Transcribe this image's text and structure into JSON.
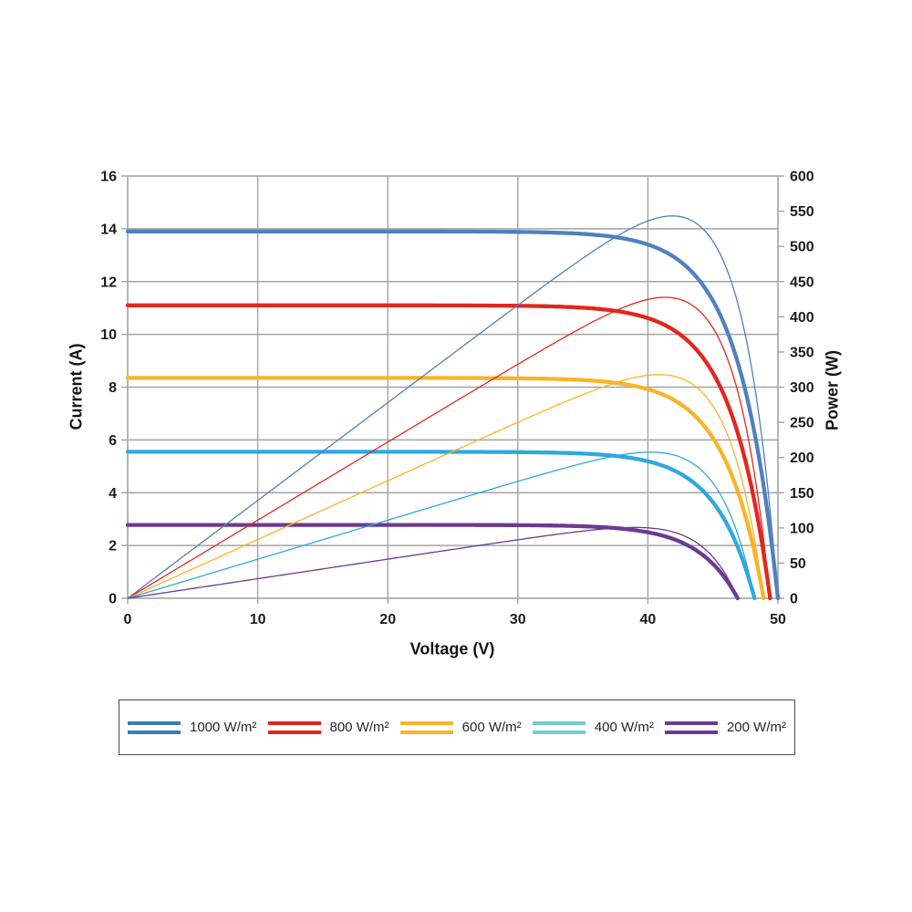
{
  "chart_data": {
    "type": "line",
    "title": "",
    "description": "Solar PV module I-V curves (thick lines, left axis) and P-V curves (thin lines, right axis) at five irradiance levels",
    "x_axis": {
      "label": "Voltage (V)",
      "min": 0,
      "max": 50,
      "ticks": [
        0,
        10,
        20,
        30,
        40,
        50
      ]
    },
    "y_axis_left": {
      "label": "Current (A)",
      "min": 0,
      "max": 16,
      "ticks": [
        0,
        2,
        4,
        6,
        8,
        10,
        12,
        14,
        16
      ]
    },
    "y_axis_right": {
      "label": "Power (W)",
      "min": 0,
      "max": 600,
      "ticks": [
        0,
        50,
        100,
        150,
        200,
        250,
        300,
        350,
        400,
        450,
        500,
        550,
        600
      ]
    },
    "grid": {
      "on": true,
      "color": "#A3A3A3",
      "horizontal_every_amps": 2,
      "vertical_every_volts": 10
    },
    "legend": {
      "position": "bottom",
      "border_color": "#4a4a4a"
    },
    "series": [
      {
        "label": "1000 W/m²",
        "color": "#4F81BD",
        "legend_color": "#3A7CB8",
        "isc_a": 13.9,
        "voc_v": 50.0,
        "vmp_v": 41.5,
        "pmax_w": 550,
        "knee_a": 3.0,
        "iv_points": [
          [
            0,
            13.9
          ],
          [
            10,
            13.9
          ],
          [
            20,
            13.9
          ],
          [
            30,
            13.89
          ],
          [
            40,
            13.4
          ],
          [
            44,
            12.0
          ],
          [
            46,
            10.2
          ],
          [
            48,
            6.8
          ],
          [
            50,
            0
          ]
        ],
        "pv_points": [
          [
            0,
            0
          ],
          [
            10,
            139
          ],
          [
            20,
            278
          ],
          [
            30,
            417
          ],
          [
            41.5,
            550
          ],
          [
            46,
            470
          ],
          [
            50,
            0
          ]
        ]
      },
      {
        "label": "800 W/m²",
        "color": "#E3261E",
        "legend_color": "#E3261E",
        "isc_a": 11.1,
        "voc_v": 49.4,
        "vmp_v": 41.5,
        "pmax_w": 440,
        "knee_a": 3.0,
        "iv_points": [
          [
            0,
            11.1
          ],
          [
            10,
            11.1
          ],
          [
            20,
            11.1
          ],
          [
            30,
            11.09
          ],
          [
            40,
            10.6
          ],
          [
            44,
            9.3
          ],
          [
            46,
            7.5
          ],
          [
            48,
            4.1
          ],
          [
            49.4,
            0
          ]
        ],
        "pv_points": [
          [
            0,
            0
          ],
          [
            10,
            111
          ],
          [
            20,
            222
          ],
          [
            30,
            333
          ],
          [
            41.5,
            440
          ],
          [
            46,
            345
          ],
          [
            49.4,
            0
          ]
        ]
      },
      {
        "label": "600 W/m²",
        "color": "#FAB427",
        "legend_color": "#FAB427",
        "isc_a": 8.35,
        "voc_v": 48.9,
        "vmp_v": 41.0,
        "pmax_w": 330,
        "knee_a": 3.0,
        "iv_points": [
          [
            0,
            8.35
          ],
          [
            10,
            8.35
          ],
          [
            20,
            8.35
          ],
          [
            30,
            8.34
          ],
          [
            40,
            7.9
          ],
          [
            44,
            6.7
          ],
          [
            46,
            5.2
          ],
          [
            48,
            2.2
          ],
          [
            48.9,
            0
          ]
        ],
        "pv_points": [
          [
            0,
            0
          ],
          [
            10,
            83.5
          ],
          [
            20,
            167
          ],
          [
            30,
            250
          ],
          [
            41,
            330
          ],
          [
            46,
            238
          ],
          [
            48.9,
            0
          ]
        ]
      },
      {
        "label": "400 W/m²",
        "color": "#2FA8DC",
        "legend_color": "#78CAD2",
        "isc_a": 5.55,
        "voc_v": 48.2,
        "vmp_v": 41.0,
        "pmax_w": 220,
        "knee_a": 3.0,
        "iv_points": [
          [
            0,
            5.55
          ],
          [
            10,
            5.55
          ],
          [
            20,
            5.55
          ],
          [
            30,
            5.54
          ],
          [
            40,
            5.2
          ],
          [
            44,
            4.2
          ],
          [
            46,
            2.9
          ],
          [
            48,
            0.4
          ],
          [
            48.2,
            0
          ]
        ],
        "pv_points": [
          [
            0,
            0
          ],
          [
            10,
            55.5
          ],
          [
            20,
            111
          ],
          [
            30,
            166
          ],
          [
            41,
            220
          ],
          [
            46,
            132
          ],
          [
            48.2,
            0
          ]
        ]
      },
      {
        "label": "200 W/m²",
        "color": "#6C3A91",
        "legend_color": "#6C3A91",
        "isc_a": 2.78,
        "voc_v": 46.9,
        "vmp_v": 39.5,
        "pmax_w": 105,
        "knee_a": 3.0,
        "iv_points": [
          [
            0,
            2.78
          ],
          [
            10,
            2.78
          ],
          [
            20,
            2.78
          ],
          [
            30,
            2.77
          ],
          [
            40,
            2.5
          ],
          [
            44,
            1.7
          ],
          [
            46,
            0.7
          ],
          [
            46.9,
            0
          ]
        ],
        "pv_points": [
          [
            0,
            0
          ],
          [
            10,
            27.8
          ],
          [
            20,
            55.6
          ],
          [
            30,
            83
          ],
          [
            39.5,
            105
          ],
          [
            44,
            76
          ],
          [
            46.9,
            0
          ]
        ]
      }
    ]
  }
}
